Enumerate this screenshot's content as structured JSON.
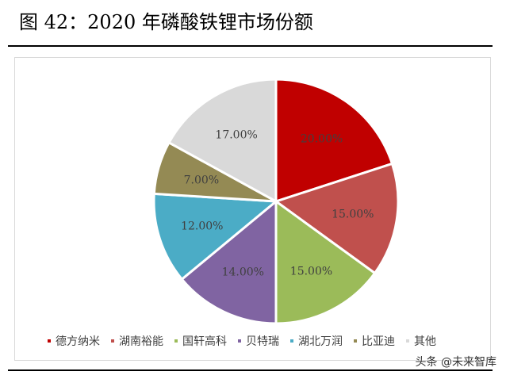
{
  "figure_title": "图 42：2020 年磷酸铁锂市场份额",
  "watermark": "头条 @未来智库",
  "chart_data": {
    "type": "pie",
    "title": "",
    "categories": [
      "德方纳米",
      "湖南裕能",
      "国轩高科",
      "贝特瑞",
      "湖北万润",
      "比亚迪",
      "其他"
    ],
    "values": [
      20.0,
      15.0,
      15.0,
      14.0,
      12.0,
      7.0,
      17.0
    ],
    "labels": [
      "20.00%",
      "15.00%",
      "15.00%",
      "14.00%",
      "12.00%",
      "7.00%",
      "17.00%"
    ],
    "colors": [
      "#c00000",
      "#c0504d",
      "#9bbb59",
      "#8064a2",
      "#4bacc6",
      "#948a54",
      "#d9d9d9"
    ],
    "legend_position": "bottom",
    "start_angle": "12 o'clock",
    "direction": "clockwise"
  }
}
